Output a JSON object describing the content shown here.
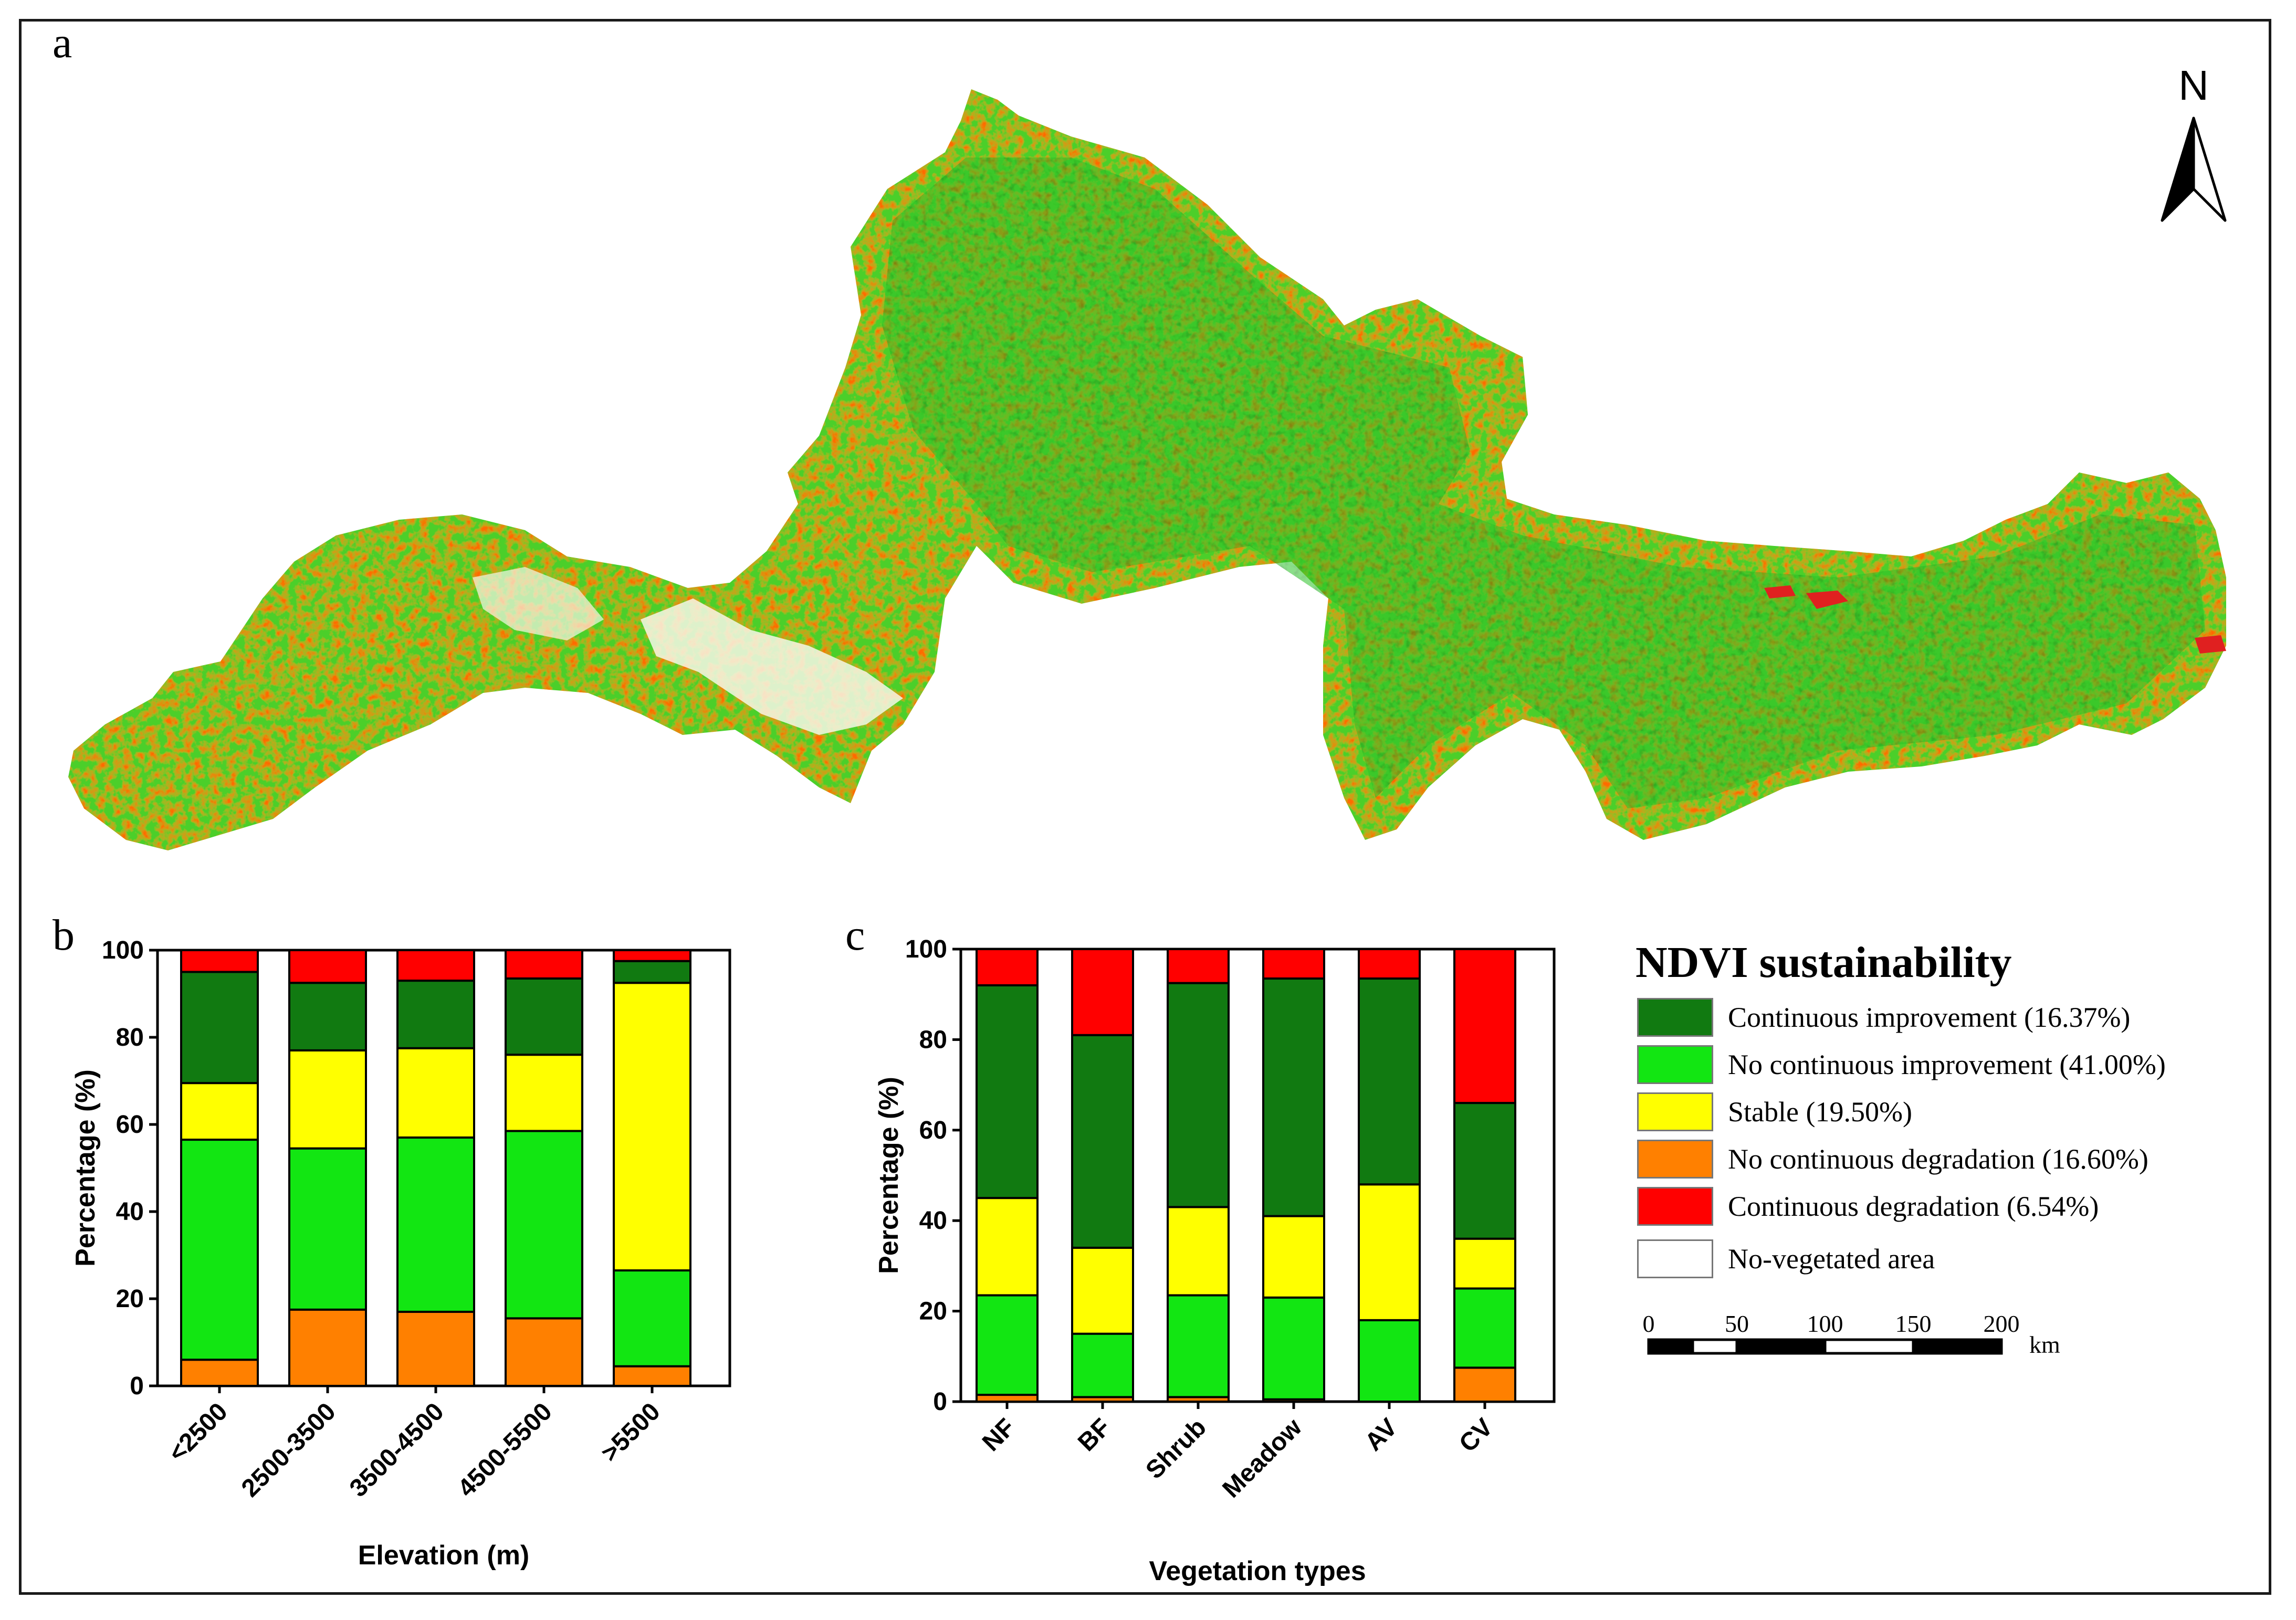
{
  "panels": {
    "a": "a",
    "b": "b",
    "c": "c"
  },
  "map": {
    "north_label": "N",
    "colors": {
      "continuous_improvement": "#117a11",
      "no_continuous_improvement": "#12e612",
      "stable": "#ffff00",
      "no_continuous_degradation": "#ff8000",
      "continuous_degradation": "#ff0000",
      "no_vegetated": "#ffffff"
    }
  },
  "legend": {
    "title": "NDVI sustainability",
    "items": [
      {
        "label": "Continuous improvement (16.37%)",
        "color": "#117a11"
      },
      {
        "label": "No continuous improvement (41.00%)",
        "color": "#12e612"
      },
      {
        "label": "Stable (19.50%)",
        "color": "#ffff00"
      },
      {
        "label": "No continuous degradation (16.60%)",
        "color": "#ff8000"
      },
      {
        "label": "Continuous degradation (6.54%)",
        "color": "#ff0000"
      },
      {
        "label": "No-vegetated area",
        "color": "#ffffff"
      }
    ]
  },
  "scale_bar": {
    "ticks": [
      "0",
      "50",
      "100",
      "150",
      "200"
    ],
    "unit": "km"
  },
  "chart_data": [
    {
      "type": "bar",
      "stacked": true,
      "title": "",
      "xlabel": "Elevation (m)",
      "ylabel": "Percentage (%)",
      "ylim": [
        0,
        100
      ],
      "yticks": [
        0,
        20,
        40,
        60,
        80,
        100
      ],
      "categories": [
        "<2500",
        "2500-3500",
        "3500-4500",
        "4500-5500",
        ">5500"
      ],
      "series": [
        {
          "name": "No continuous degradation",
          "color": "#ff8000",
          "values": [
            6,
            17.5,
            17,
            15.5,
            4.5
          ]
        },
        {
          "name": "No continuous improvement",
          "color": "#12e612",
          "values": [
            50.5,
            37,
            40,
            43,
            22
          ]
        },
        {
          "name": "Stable",
          "color": "#ffff00",
          "values": [
            13,
            22.5,
            20.5,
            17.5,
            66
          ]
        },
        {
          "name": "Continuous improvement",
          "color": "#117a11",
          "values": [
            25.5,
            15.5,
            15.5,
            17.5,
            5
          ]
        },
        {
          "name": "Continuous degradation",
          "color": "#ff0000",
          "values": [
            5,
            7.5,
            7,
            6.5,
            2.5
          ]
        }
      ]
    },
    {
      "type": "bar",
      "stacked": true,
      "title": "",
      "xlabel": "Vegetation types",
      "ylabel": "Percentage (%)",
      "ylim": [
        0,
        100
      ],
      "yticks": [
        0,
        20,
        40,
        60,
        80,
        100
      ],
      "categories": [
        "NF",
        "BF",
        "Shrub",
        "Meadow",
        "AV",
        "CV"
      ],
      "series": [
        {
          "name": "No continuous degradation",
          "color": "#ff8000",
          "values": [
            1.5,
            1,
            1,
            0.5,
            0,
            7.5
          ]
        },
        {
          "name": "No continuous improvement",
          "color": "#12e612",
          "values": [
            22,
            14,
            22.5,
            22.5,
            18,
            17.5
          ]
        },
        {
          "name": "Stable",
          "color": "#ffff00",
          "values": [
            21.5,
            19,
            19.5,
            18,
            30,
            11
          ]
        },
        {
          "name": "Continuous improvement",
          "color": "#117a11",
          "values": [
            47,
            47,
            49.5,
            52.5,
            45.5,
            30
          ]
        },
        {
          "name": "Continuous degradation",
          "color": "#ff0000",
          "values": [
            8,
            19,
            7.5,
            6.5,
            6.5,
            34
          ]
        }
      ]
    }
  ]
}
